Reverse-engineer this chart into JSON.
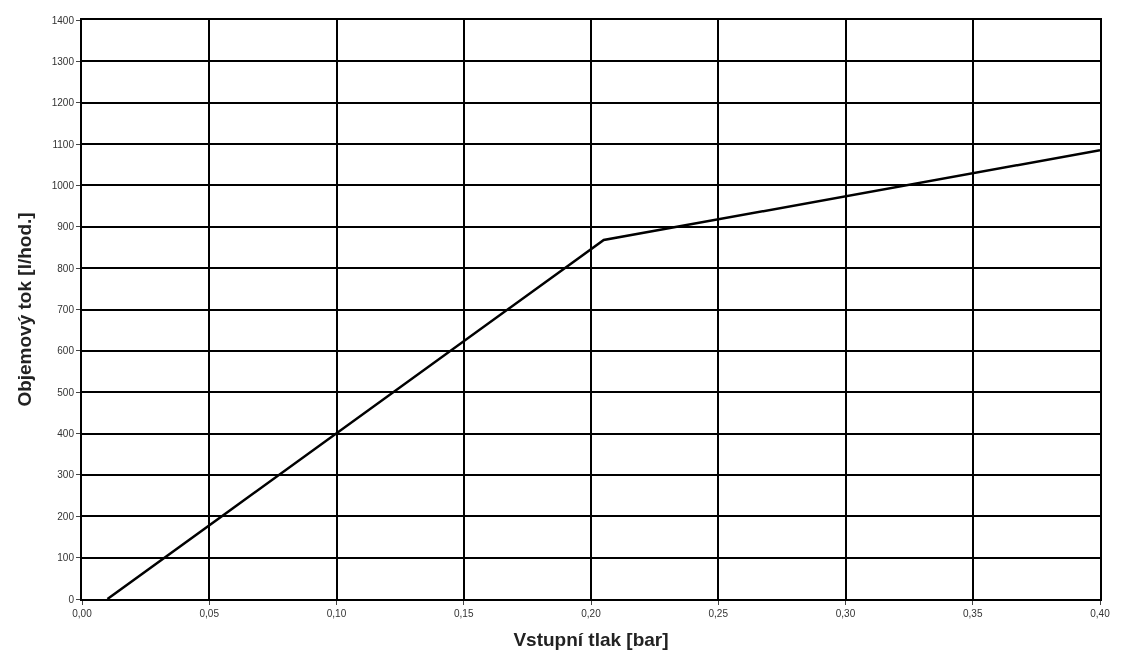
{
  "chart_data": {
    "type": "line",
    "xlabel": "Vstupní tlak [bar]",
    "ylabel": "Objemový tok [l/hod.]",
    "x": [
      0.01,
      0.205,
      0.4
    ],
    "series": [
      {
        "color": "#000000",
        "values": [
          0,
          868,
          1085
        ]
      }
    ],
    "xlim": [
      0,
      0.4
    ],
    "xticks": [
      {
        "value": 0,
        "label": "0,00"
      },
      {
        "value": 0.05,
        "label": "0,05"
      },
      {
        "value": 0.1,
        "label": "0,10"
      },
      {
        "value": 0.15,
        "label": "0,15"
      },
      {
        "value": 0.2,
        "label": "0,20"
      },
      {
        "value": 0.25,
        "label": "0,25"
      },
      {
        "value": 0.3,
        "label": "0,30"
      },
      {
        "value": 0.35,
        "label": "0,35"
      },
      {
        "value": 0.4,
        "label": "0,40"
      }
    ],
    "ylim": [
      0,
      1400
    ],
    "yticks": [
      0,
      100,
      200,
      300,
      400,
      500,
      600,
      700,
      800,
      900,
      1000,
      1100,
      1200,
      1300,
      1400
    ],
    "grid": true,
    "marker": "none",
    "line_style": "solid"
  }
}
